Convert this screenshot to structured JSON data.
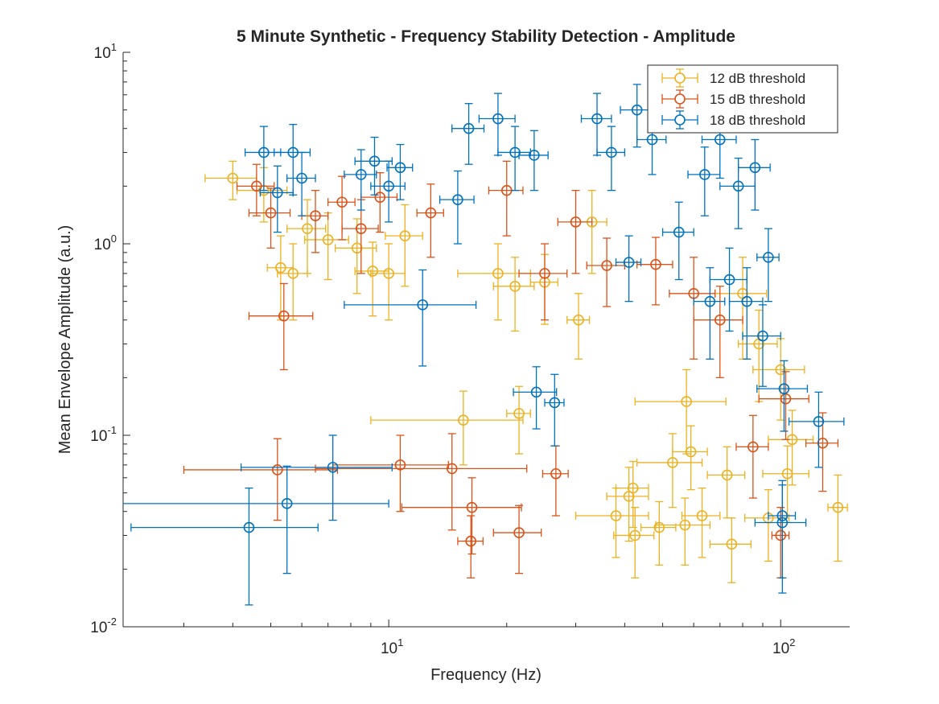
{
  "chart_data": {
    "type": "scatter",
    "title": "5 Minute Synthetic - Frequency Stability Detection - Amplitude",
    "xlabel": "Frequency (Hz)",
    "ylabel": "Mean Envelope Amplitude (a.u.)",
    "xscale": "log",
    "yscale": "log",
    "xlim": [
      2.1,
      150
    ],
    "ylim": [
      0.01,
      10
    ],
    "x_ticks": [
      10,
      100
    ],
    "y_ticks": [
      0.01,
      0.1,
      1,
      10
    ],
    "x_tick_labels": [
      {
        "base": "10",
        "exp": "1"
      },
      {
        "base": "10",
        "exp": "2"
      }
    ],
    "y_tick_labels": [
      {
        "base": "10",
        "exp": "-2"
      },
      {
        "base": "10",
        "exp": "-1"
      },
      {
        "base": "10",
        "exp": "0"
      },
      {
        "base": "10",
        "exp": "1"
      }
    ],
    "grid": false,
    "legend_position": "top-right",
    "error_bars": "both",
    "series": [
      {
        "name": "12 dB threshold",
        "color": "#EDB120",
        "points": [
          {
            "x": 4.0,
            "y": 2.2,
            "xerr": 0.6,
            "yerr": 0.5
          },
          {
            "x": 4.8,
            "y": 1.9,
            "xerr": 0.7,
            "yerr": 0.6
          },
          {
            "x": 5.3,
            "y": 0.75,
            "xerr": 0.4,
            "yerr": 0.35
          },
          {
            "x": 5.7,
            "y": 0.7,
            "xerr": 0.5,
            "yerr": 0.3
          },
          {
            "x": 6.2,
            "y": 1.2,
            "xerr": 0.7,
            "yerr": 0.5
          },
          {
            "x": 7.0,
            "y": 1.05,
            "xerr": 0.9,
            "yerr": 0.4
          },
          {
            "x": 8.3,
            "y": 0.95,
            "xerr": 1.0,
            "yerr": 0.4
          },
          {
            "x": 9.1,
            "y": 0.72,
            "xerr": 0.9,
            "yerr": 0.3
          },
          {
            "x": 10.0,
            "y": 0.7,
            "xerr": 1.0,
            "yerr": 0.3
          },
          {
            "x": 11.0,
            "y": 1.1,
            "xerr": 1.2,
            "yerr": 0.5
          },
          {
            "x": 15.5,
            "y": 0.12,
            "xerr": 6.5,
            "yerr": 0.05
          },
          {
            "x": 19.0,
            "y": 0.7,
            "xerr": 4.0,
            "yerr": 0.3
          },
          {
            "x": 21.0,
            "y": 0.6,
            "xerr": 2.5,
            "yerr": 0.25
          },
          {
            "x": 21.5,
            "y": 0.13,
            "xerr": 1.5,
            "yerr": 0.05
          },
          {
            "x": 25.0,
            "y": 0.63,
            "xerr": 2.0,
            "yerr": 0.25
          },
          {
            "x": 30.5,
            "y": 0.4,
            "xerr": 2.0,
            "yerr": 0.15
          },
          {
            "x": 33.0,
            "y": 1.3,
            "xerr": 3.0,
            "yerr": 0.6
          },
          {
            "x": 38.0,
            "y": 0.038,
            "xerr": 8.0,
            "yerr": 0.015
          },
          {
            "x": 41.0,
            "y": 0.048,
            "xerr": 5.0,
            "yerr": 0.02
          },
          {
            "x": 42.0,
            "y": 0.053,
            "xerr": 4.0,
            "yerr": 0.02
          },
          {
            "x": 42.5,
            "y": 0.03,
            "xerr": 5.0,
            "yerr": 0.012
          },
          {
            "x": 49.0,
            "y": 0.033,
            "xerr": 5.0,
            "yerr": 0.012
          },
          {
            "x": 53.0,
            "y": 0.072,
            "xerr": 10.0,
            "yerr": 0.03
          },
          {
            "x": 57.0,
            "y": 0.034,
            "xerr": 9.0,
            "yerr": 0.013
          },
          {
            "x": 57.5,
            "y": 0.15,
            "xerr": 15.0,
            "yerr": 0.07
          },
          {
            "x": 59.0,
            "y": 0.082,
            "xerr": 6.0,
            "yerr": 0.03
          },
          {
            "x": 63.0,
            "y": 0.038,
            "xerr": 7.0,
            "yerr": 0.015
          },
          {
            "x": 73.0,
            "y": 0.062,
            "xerr": 8.0,
            "yerr": 0.025
          },
          {
            "x": 75.0,
            "y": 0.027,
            "xerr": 9.0,
            "yerr": 0.01
          },
          {
            "x": 80.0,
            "y": 0.55,
            "xerr": 12.0,
            "yerr": 0.3
          },
          {
            "x": 88.0,
            "y": 0.3,
            "xerr": 10.0,
            "yerr": 0.15
          },
          {
            "x": 93.0,
            "y": 0.037,
            "xerr": 12.0,
            "yerr": 0.015
          },
          {
            "x": 100.0,
            "y": 0.22,
            "xerr": 15.0,
            "yerr": 0.1
          },
          {
            "x": 104.0,
            "y": 0.063,
            "xerr": 14.0,
            "yerr": 0.025
          },
          {
            "x": 107.0,
            "y": 0.095,
            "xerr": 14.0,
            "yerr": 0.04
          },
          {
            "x": 140.0,
            "y": 0.042,
            "xerr": 8.0,
            "yerr": 0.02
          }
        ]
      },
      {
        "name": "15 dB threshold",
        "color": "#D95319",
        "points": [
          {
            "x": 4.6,
            "y": 2.0,
            "xerr": 0.5,
            "yerr": 0.6
          },
          {
            "x": 5.0,
            "y": 1.45,
            "xerr": 0.6,
            "yerr": 0.5
          },
          {
            "x": 5.4,
            "y": 0.42,
            "xerr": 1.0,
            "yerr": 0.2
          },
          {
            "x": 5.2,
            "y": 0.066,
            "xerr": 2.2,
            "yerr": 0.03
          },
          {
            "x": 6.5,
            "y": 1.4,
            "xerr": 0.5,
            "yerr": 0.5
          },
          {
            "x": 7.6,
            "y": 1.65,
            "xerr": 0.6,
            "yerr": 0.6
          },
          {
            "x": 8.5,
            "y": 1.2,
            "xerr": 0.9,
            "yerr": 0.5
          },
          {
            "x": 9.5,
            "y": 1.75,
            "xerr": 1.0,
            "yerr": 0.6
          },
          {
            "x": 10.7,
            "y": 0.07,
            "xerr": 3.5,
            "yerr": 0.03
          },
          {
            "x": 12.8,
            "y": 1.45,
            "xerr": 1.0,
            "yerr": 0.6
          },
          {
            "x": 14.5,
            "y": 0.067,
            "xerr": 8.0,
            "yerr": 0.035
          },
          {
            "x": 16.3,
            "y": 0.042,
            "xerr": 5.5,
            "yerr": 0.018
          },
          {
            "x": 16.2,
            "y": 0.028,
            "xerr": 1.2,
            "yerr": 0.01
          },
          {
            "x": 20.0,
            "y": 1.9,
            "xerr": 2.0,
            "yerr": 0.8
          },
          {
            "x": 21.5,
            "y": 0.031,
            "xerr": 3.0,
            "yerr": 0.012
          },
          {
            "x": 25.0,
            "y": 0.7,
            "xerr": 3.5,
            "yerr": 0.3
          },
          {
            "x": 26.7,
            "y": 0.063,
            "xerr": 2.0,
            "yerr": 0.025
          },
          {
            "x": 30.0,
            "y": 1.3,
            "xerr": 3.0,
            "yerr": 0.6
          },
          {
            "x": 36.0,
            "y": 0.77,
            "xerr": 4.0,
            "yerr": 0.3
          },
          {
            "x": 48.0,
            "y": 0.78,
            "xerr": 5.0,
            "yerr": 0.3
          },
          {
            "x": 60.0,
            "y": 0.55,
            "xerr": 8.0,
            "yerr": 0.3
          },
          {
            "x": 70.0,
            "y": 0.4,
            "xerr": 10.0,
            "yerr": 0.2
          },
          {
            "x": 85.0,
            "y": 0.087,
            "xerr": 8.0,
            "yerr": 0.04
          },
          {
            "x": 100.0,
            "y": 0.03,
            "xerr": 5.0,
            "yerr": 0.012
          },
          {
            "x": 103.0,
            "y": 0.155,
            "xerr": 15.0,
            "yerr": 0.06
          },
          {
            "x": 128.0,
            "y": 0.091,
            "xerr": 12.0,
            "yerr": 0.04
          }
        ]
      },
      {
        "name": "18 dB threshold",
        "color": "#0072BD",
        "points": [
          {
            "x": 4.8,
            "y": 3.0,
            "xerr": 0.5,
            "yerr": 1.1
          },
          {
            "x": 5.2,
            "y": 1.85,
            "xerr": 0.5,
            "yerr": 0.7
          },
          {
            "x": 5.7,
            "y": 3.0,
            "xerr": 0.6,
            "yerr": 1.2
          },
          {
            "x": 6.0,
            "y": 2.2,
            "xerr": 0.5,
            "yerr": 0.8
          },
          {
            "x": 4.4,
            "y": 0.033,
            "xerr": 2.2,
            "yerr": 0.02
          },
          {
            "x": 5.5,
            "y": 0.044,
            "xerr": 4.5,
            "yerr": 0.025
          },
          {
            "x": 7.2,
            "y": 0.068,
            "xerr": 3.0,
            "yerr": 0.032
          },
          {
            "x": 8.5,
            "y": 2.3,
            "xerr": 0.8,
            "yerr": 0.8
          },
          {
            "x": 9.2,
            "y": 2.7,
            "xerr": 1.0,
            "yerr": 0.9
          },
          {
            "x": 10.0,
            "y": 2.0,
            "xerr": 1.0,
            "yerr": 0.7
          },
          {
            "x": 10.7,
            "y": 2.5,
            "xerr": 0.8,
            "yerr": 0.8
          },
          {
            "x": 12.2,
            "y": 0.48,
            "xerr": 4.5,
            "yerr": 0.25
          },
          {
            "x": 15.0,
            "y": 1.7,
            "xerr": 1.5,
            "yerr": 0.7
          },
          {
            "x": 16.0,
            "y": 4.0,
            "xerr": 1.5,
            "yerr": 1.4
          },
          {
            "x": 19.0,
            "y": 4.5,
            "xerr": 2.0,
            "yerr": 1.6
          },
          {
            "x": 21.0,
            "y": 3.0,
            "xerr": 2.0,
            "yerr": 1.1
          },
          {
            "x": 23.5,
            "y": 2.9,
            "xerr": 2.0,
            "yerr": 1.0
          },
          {
            "x": 23.8,
            "y": 0.168,
            "xerr": 3.0,
            "yerr": 0.06
          },
          {
            "x": 26.5,
            "y": 0.148,
            "xerr": 1.5,
            "yerr": 0.06
          },
          {
            "x": 34.0,
            "y": 4.5,
            "xerr": 3.0,
            "yerr": 1.6
          },
          {
            "x": 37.0,
            "y": 3.0,
            "xerr": 3.0,
            "yerr": 1.1
          },
          {
            "x": 41.0,
            "y": 0.8,
            "xerr": 3.0,
            "yerr": 0.3
          },
          {
            "x": 43.0,
            "y": 5.0,
            "xerr": 4.0,
            "yerr": 1.8
          },
          {
            "x": 47.0,
            "y": 3.5,
            "xerr": 4.0,
            "yerr": 1.2
          },
          {
            "x": 55.0,
            "y": 1.15,
            "xerr": 5.0,
            "yerr": 0.5
          },
          {
            "x": 64.0,
            "y": 2.3,
            "xerr": 6.0,
            "yerr": 0.9
          },
          {
            "x": 66.0,
            "y": 0.5,
            "xerr": 6.0,
            "yerr": 0.25
          },
          {
            "x": 70.0,
            "y": 3.5,
            "xerr": 7.0,
            "yerr": 1.3
          },
          {
            "x": 74.0,
            "y": 0.65,
            "xerr": 8.0,
            "yerr": 0.3
          },
          {
            "x": 78.0,
            "y": 2.0,
            "xerr": 8.0,
            "yerr": 0.8
          },
          {
            "x": 82.0,
            "y": 0.5,
            "xerr": 8.0,
            "yerr": 0.25
          },
          {
            "x": 86.0,
            "y": 2.5,
            "xerr": 8.0,
            "yerr": 1.0
          },
          {
            "x": 90.0,
            "y": 0.33,
            "xerr": 10.0,
            "yerr": 0.15
          },
          {
            "x": 93.0,
            "y": 0.85,
            "xerr": 6.0,
            "yerr": 0.35
          },
          {
            "x": 102.0,
            "y": 0.175,
            "xerr": 15.0,
            "yerr": 0.07
          },
          {
            "x": 101.0,
            "y": 0.038,
            "xerr": 8.0,
            "yerr": 0.02
          },
          {
            "x": 101.0,
            "y": 0.035,
            "xerr": 15.0,
            "yerr": 0.02
          },
          {
            "x": 125.0,
            "y": 0.118,
            "xerr": 20.0,
            "yerr": 0.05
          }
        ]
      }
    ]
  }
}
